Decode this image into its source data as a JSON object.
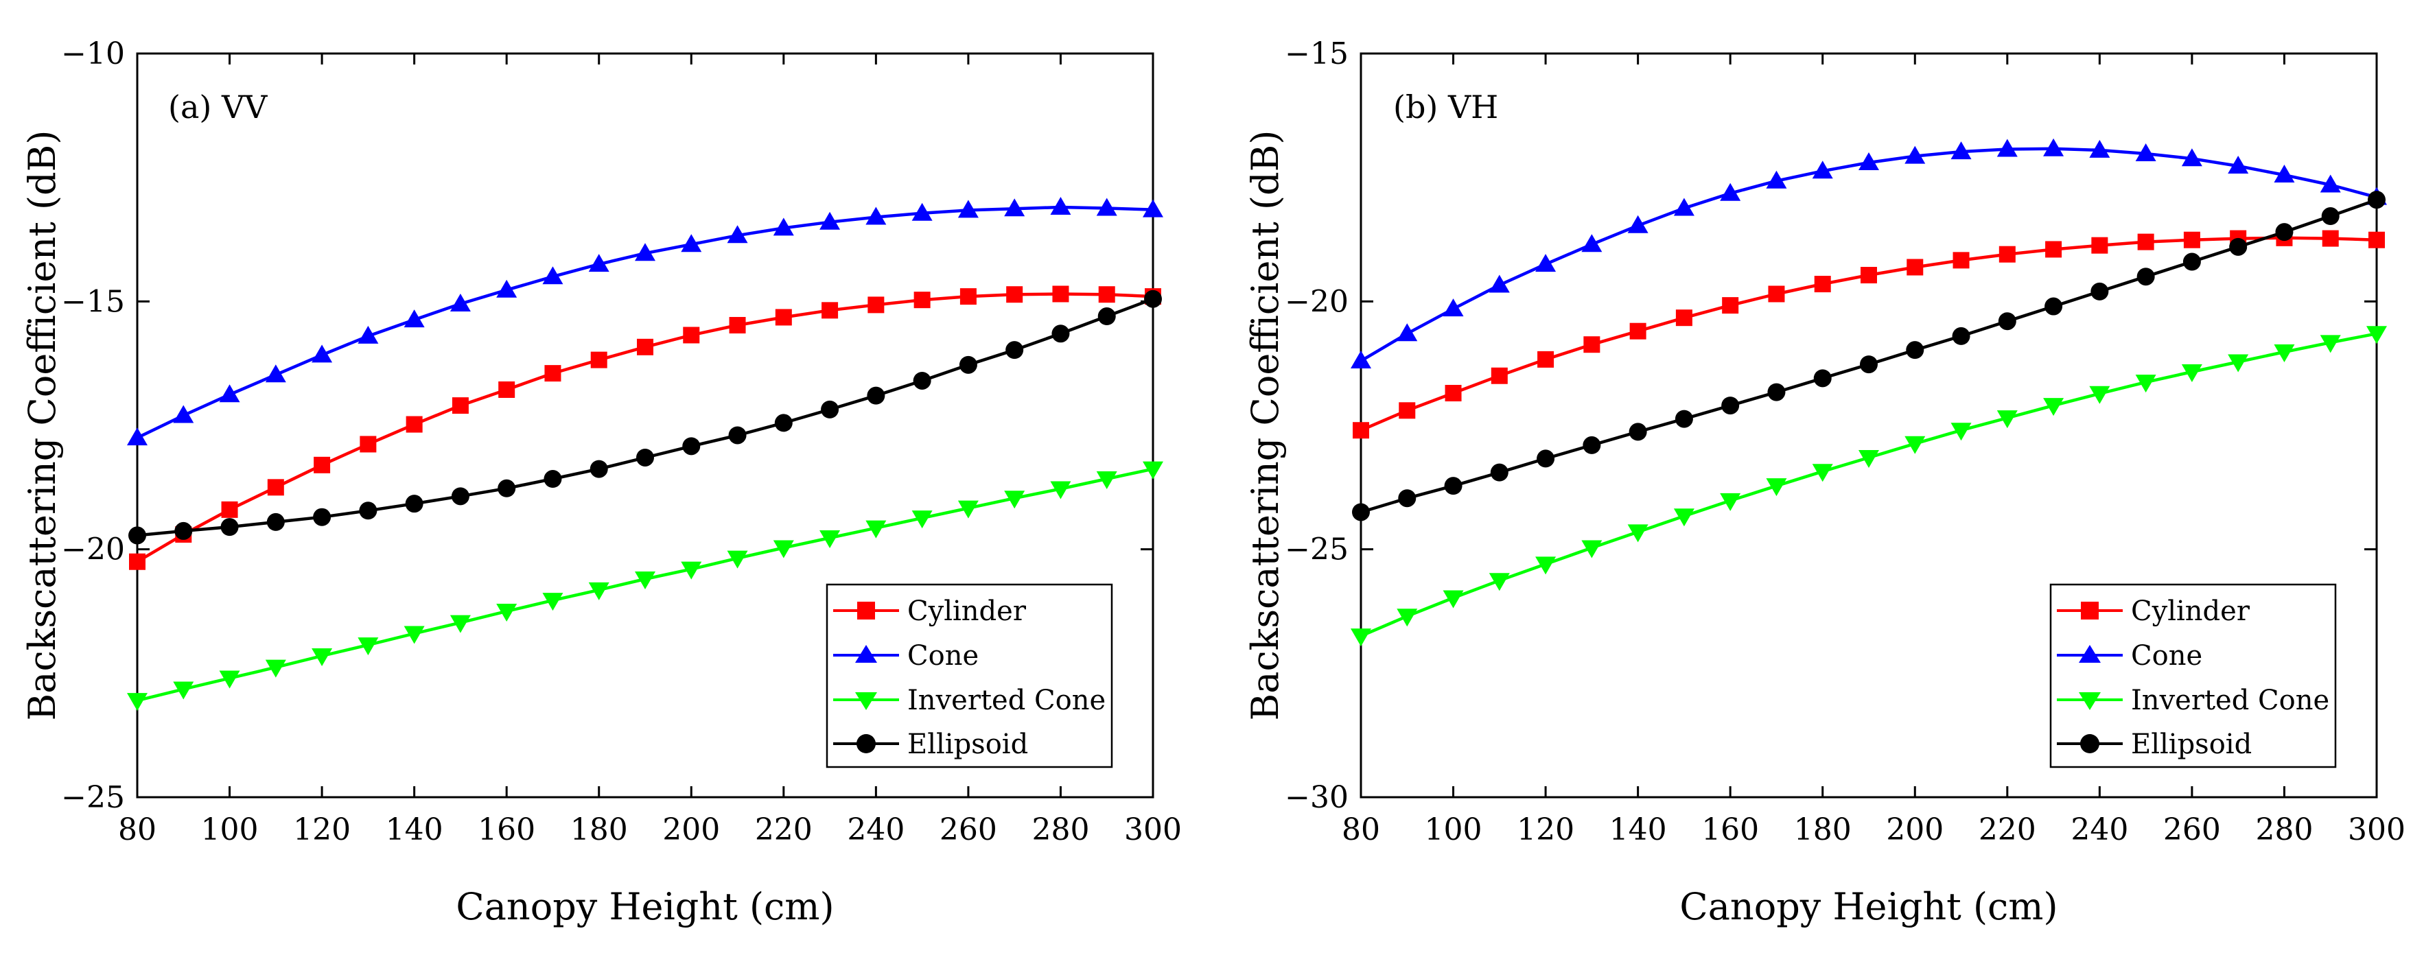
{
  "chart_data": [
    {
      "type": "line",
      "panel_label": "(a) VV",
      "xlabel": "Canopy Height (cm)",
      "ylabel": "Backscattering Coefficient (dB)",
      "xlim": [
        80,
        300
      ],
      "ylim": [
        -25,
        -10
      ],
      "xticks": [
        80,
        100,
        120,
        140,
        160,
        180,
        200,
        220,
        240,
        260,
        280,
        300
      ],
      "yticks": [
        -25,
        -20,
        -15,
        -10
      ],
      "xtick_labels": [
        "80",
        "100",
        "120",
        "140",
        "160",
        "180",
        "200",
        "220",
        "240",
        "260",
        "280",
        "300"
      ],
      "ytick_labels": [
        "−25",
        "−20",
        "−15",
        "−10"
      ],
      "grid": false,
      "legend_position": "bottom-right",
      "x": [
        80,
        90,
        100,
        110,
        120,
        130,
        140,
        150,
        160,
        170,
        180,
        190,
        200,
        210,
        220,
        230,
        240,
        250,
        260,
        270,
        280,
        290,
        300
      ],
      "series": [
        {
          "name": "Cylinder",
          "color": "#ff0000",
          "marker": "square",
          "values": [
            -20.25,
            -19.7,
            -19.2,
            -18.75,
            -18.3,
            -17.88,
            -17.48,
            -17.1,
            -16.78,
            -16.45,
            -16.18,
            -15.92,
            -15.68,
            -15.48,
            -15.32,
            -15.18,
            -15.07,
            -14.97,
            -14.9,
            -14.86,
            -14.85,
            -14.86,
            -14.9
          ]
        },
        {
          "name": "Cone",
          "color": "#0000ff",
          "marker": "triangle-up",
          "values": [
            -17.75,
            -17.3,
            -16.88,
            -16.48,
            -16.08,
            -15.7,
            -15.37,
            -15.05,
            -14.77,
            -14.5,
            -14.25,
            -14.03,
            -13.85,
            -13.67,
            -13.52,
            -13.4,
            -13.3,
            -13.22,
            -13.16,
            -13.13,
            -13.1,
            -13.12,
            -13.15
          ]
        },
        {
          "name": "Inverted Cone",
          "color": "#00ff00",
          "marker": "triangle-down",
          "values": [
            -23.05,
            -22.82,
            -22.6,
            -22.38,
            -22.15,
            -21.93,
            -21.7,
            -21.48,
            -21.25,
            -21.03,
            -20.82,
            -20.6,
            -20.4,
            -20.18,
            -19.97,
            -19.77,
            -19.57,
            -19.37,
            -19.17,
            -18.97,
            -18.78,
            -18.58,
            -18.38
          ]
        },
        {
          "name": "Ellipsoid",
          "color": "#000000",
          "marker": "circle",
          "values": [
            -19.72,
            -19.63,
            -19.55,
            -19.45,
            -19.35,
            -19.22,
            -19.08,
            -18.93,
            -18.77,
            -18.58,
            -18.38,
            -18.15,
            -17.92,
            -17.7,
            -17.45,
            -17.18,
            -16.9,
            -16.6,
            -16.28,
            -15.98,
            -15.65,
            -15.3,
            -14.95
          ]
        }
      ]
    },
    {
      "type": "line",
      "panel_label": "(b) VH",
      "xlabel": "Canopy Height (cm)",
      "ylabel": "Backscattering Coefficient (dB)",
      "xlim": [
        80,
        300
      ],
      "ylim": [
        -30,
        -15
      ],
      "xticks": [
        80,
        100,
        120,
        140,
        160,
        180,
        200,
        220,
        240,
        260,
        280,
        300
      ],
      "yticks": [
        -30,
        -25,
        -20,
        -15
      ],
      "xtick_labels": [
        "80",
        "100",
        "120",
        "140",
        "160",
        "180",
        "200",
        "220",
        "240",
        "260",
        "280",
        "300"
      ],
      "ytick_labels": [
        "−30",
        "−25",
        "−20",
        "−15"
      ],
      "grid": false,
      "legend_position": "bottom-right",
      "x": [
        80,
        90,
        100,
        110,
        120,
        130,
        140,
        150,
        160,
        170,
        180,
        190,
        200,
        210,
        220,
        230,
        240,
        250,
        260,
        270,
        280,
        290,
        300
      ],
      "series": [
        {
          "name": "Cylinder",
          "color": "#ff0000",
          "marker": "square",
          "values": [
            -22.6,
            -22.2,
            -21.85,
            -21.5,
            -21.17,
            -20.87,
            -20.6,
            -20.33,
            -20.08,
            -19.85,
            -19.65,
            -19.47,
            -19.31,
            -19.17,
            -19.05,
            -18.95,
            -18.87,
            -18.8,
            -18.76,
            -18.73,
            -18.72,
            -18.73,
            -18.76
          ]
        },
        {
          "name": "Cone",
          "color": "#0000ff",
          "marker": "triangle-up",
          "values": [
            -21.2,
            -20.65,
            -20.15,
            -19.67,
            -19.25,
            -18.85,
            -18.47,
            -18.12,
            -17.82,
            -17.57,
            -17.37,
            -17.2,
            -17.07,
            -16.98,
            -16.93,
            -16.92,
            -16.95,
            -17.02,
            -17.12,
            -17.27,
            -17.45,
            -17.65,
            -17.9
          ]
        },
        {
          "name": "Inverted Cone",
          "color": "#00ff00",
          "marker": "triangle-down",
          "values": [
            -26.75,
            -26.35,
            -25.98,
            -25.63,
            -25.3,
            -24.97,
            -24.65,
            -24.33,
            -24.02,
            -23.72,
            -23.43,
            -23.15,
            -22.87,
            -22.6,
            -22.35,
            -22.1,
            -21.86,
            -21.63,
            -21.42,
            -21.22,
            -21.02,
            -20.83,
            -20.65
          ]
        },
        {
          "name": "Ellipsoid",
          "color": "#000000",
          "marker": "circle",
          "values": [
            -24.25,
            -23.97,
            -23.72,
            -23.45,
            -23.17,
            -22.9,
            -22.63,
            -22.37,
            -22.1,
            -21.83,
            -21.55,
            -21.27,
            -20.98,
            -20.7,
            -20.4,
            -20.1,
            -19.8,
            -19.5,
            -19.2,
            -18.9,
            -18.6,
            -18.28,
            -17.95
          ]
        }
      ]
    }
  ]
}
